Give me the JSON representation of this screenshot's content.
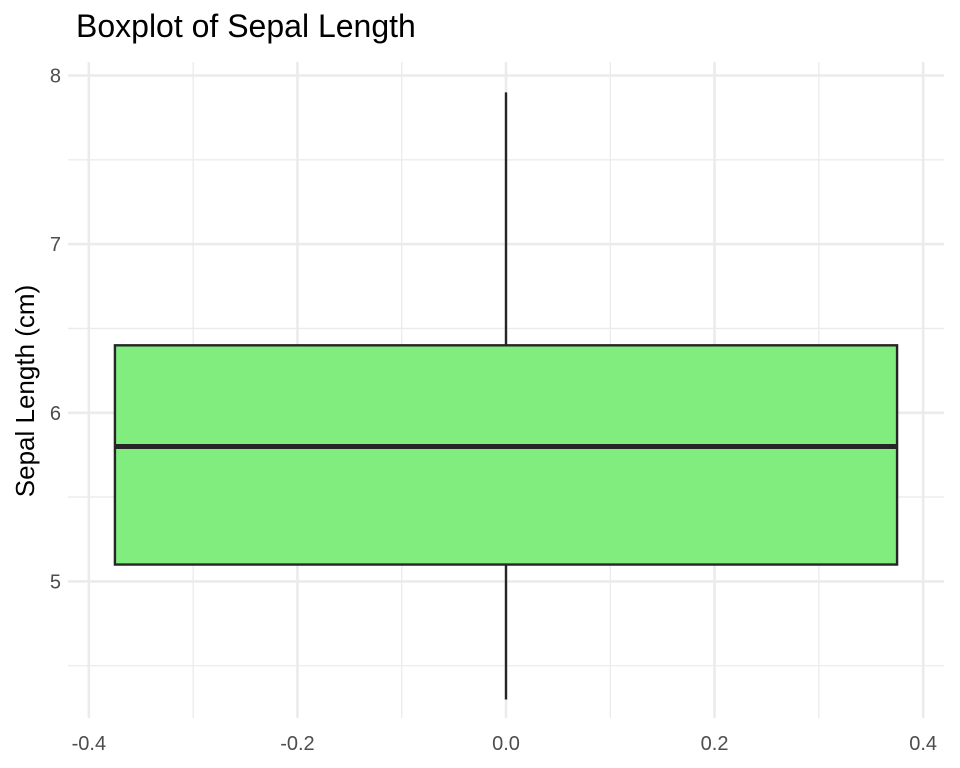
{
  "chart_data": {
    "type": "boxplot",
    "title": "Boxplot of Sepal Length",
    "xlabel": "",
    "ylabel": "Sepal Length (cm)",
    "xlim": [
      -0.42,
      0.42
    ],
    "ylim": [
      4.19,
      8.08
    ],
    "x_ticks": [
      -0.4,
      -0.2,
      0.0,
      0.2,
      0.4
    ],
    "x_tick_labels": [
      "-0.4",
      "-0.2",
      "0.0",
      "0.2",
      "0.4"
    ],
    "y_ticks": [
      5,
      6,
      7,
      8
    ],
    "y_tick_labels": [
      "5",
      "6",
      "7",
      "8"
    ],
    "y_minor_ticks": [
      4.5,
      5.5,
      6.5,
      7.5
    ],
    "x_minor_ticks": [
      -0.3,
      -0.1,
      0.1,
      0.3
    ],
    "grid": true,
    "box": {
      "x": 0.0,
      "width": 0.75,
      "min": 4.3,
      "q1": 5.1,
      "median": 5.8,
      "q3": 6.4,
      "max": 7.9
    },
    "colors": {
      "box_fill": "#82ED7F",
      "box_stroke": "#262626",
      "grid": "#ebebeb"
    }
  }
}
